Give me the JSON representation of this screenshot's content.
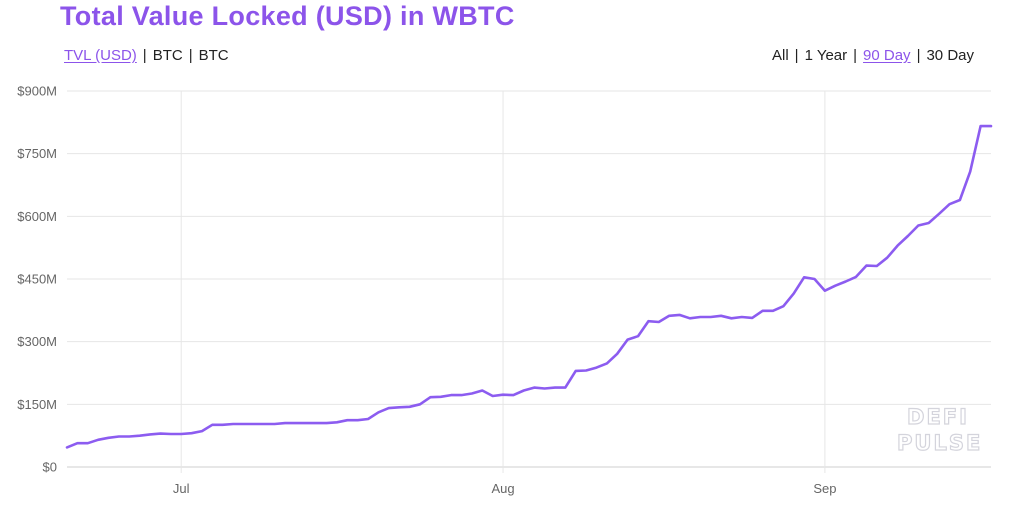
{
  "header": {
    "title": "Total Value Locked (USD) in WBTC"
  },
  "metric_toggle": [
    {
      "label": "TVL (USD)",
      "active": true
    },
    {
      "label": "BTC",
      "active": false
    },
    {
      "label": "BTC",
      "active": false
    }
  ],
  "range_toggle": [
    {
      "label": "All",
      "active": false
    },
    {
      "label": "1 Year",
      "active": false
    },
    {
      "label": "90 Day",
      "active": true
    },
    {
      "label": "30 Day",
      "active": false
    }
  ],
  "watermark": {
    "line1": "DEFI",
    "line2": "PULSE"
  },
  "colors": {
    "accent": "#8c54ea",
    "line": "#8c5cf0",
    "grid": "#e6e6e6",
    "axis_text": "#666666"
  },
  "chart_data": {
    "type": "line",
    "title": "Total Value Locked (USD) in WBTC",
    "xlabel": "",
    "ylabel": "",
    "x_start": "2020-06-20",
    "x_end": "2020-09-17",
    "x_ticks": [
      {
        "date": "2020-07-01",
        "label": "Jul"
      },
      {
        "date": "2020-08-01",
        "label": "Aug"
      },
      {
        "date": "2020-09-01",
        "label": "Sep"
      }
    ],
    "y_ticks": [
      {
        "value": 0,
        "label": "$0"
      },
      {
        "value": 150,
        "label": "$150M"
      },
      {
        "value": 300,
        "label": "$300M"
      },
      {
        "value": 450,
        "label": "$450M"
      },
      {
        "value": 600,
        "label": "$600M"
      },
      {
        "value": 750,
        "label": "$750M"
      },
      {
        "value": 900,
        "label": "$900M"
      }
    ],
    "ylim": [
      0,
      900
    ],
    "grid": true,
    "legend": false,
    "series": [
      {
        "color": "#8c5cf0",
        "x": [
          "2020-06-20",
          "2020-06-21",
          "2020-06-22",
          "2020-06-23",
          "2020-06-24",
          "2020-06-25",
          "2020-06-26",
          "2020-06-27",
          "2020-06-28",
          "2020-06-29",
          "2020-06-30",
          "2020-07-01",
          "2020-07-02",
          "2020-07-03",
          "2020-07-04",
          "2020-07-05",
          "2020-07-06",
          "2020-07-07",
          "2020-07-08",
          "2020-07-09",
          "2020-07-10",
          "2020-07-11",
          "2020-07-12",
          "2020-07-13",
          "2020-07-14",
          "2020-07-15",
          "2020-07-16",
          "2020-07-17",
          "2020-07-18",
          "2020-07-19",
          "2020-07-20",
          "2020-07-21",
          "2020-07-22",
          "2020-07-23",
          "2020-07-24",
          "2020-07-25",
          "2020-07-26",
          "2020-07-27",
          "2020-07-28",
          "2020-07-29",
          "2020-07-30",
          "2020-07-31",
          "2020-08-01",
          "2020-08-02",
          "2020-08-03",
          "2020-08-04",
          "2020-08-05",
          "2020-08-06",
          "2020-08-07",
          "2020-08-08",
          "2020-08-09",
          "2020-08-10",
          "2020-08-11",
          "2020-08-12",
          "2020-08-13",
          "2020-08-14",
          "2020-08-15",
          "2020-08-16",
          "2020-08-17",
          "2020-08-18",
          "2020-08-19",
          "2020-08-20",
          "2020-08-21",
          "2020-08-22",
          "2020-08-23",
          "2020-08-24",
          "2020-08-25",
          "2020-08-26",
          "2020-08-27",
          "2020-08-28",
          "2020-08-29",
          "2020-08-30",
          "2020-08-31",
          "2020-09-01",
          "2020-09-02",
          "2020-09-03",
          "2020-09-04",
          "2020-09-05",
          "2020-09-06",
          "2020-09-07",
          "2020-09-08",
          "2020-09-09",
          "2020-09-10",
          "2020-09-11",
          "2020-09-12",
          "2020-09-13",
          "2020-09-14",
          "2020-09-15",
          "2020-09-16",
          "2020-09-17"
        ],
        "values": [
          47,
          57,
          57,
          65,
          70,
          73,
          73,
          75,
          78,
          80,
          79,
          79,
          81,
          86,
          101,
          101,
          103,
          103,
          103,
          103,
          103,
          105,
          105,
          105,
          105,
          105,
          107,
          112,
          112,
          115,
          131,
          141,
          143,
          144,
          150,
          167,
          168,
          172,
          172,
          176,
          183,
          170,
          173,
          172,
          183,
          190,
          188,
          190,
          190,
          230,
          231,
          238,
          248,
          271,
          305,
          313,
          349,
          347,
          362,
          364,
          356,
          359,
          359,
          362,
          356,
          359,
          357,
          374,
          374,
          385,
          415,
          454,
          450,
          422,
          434,
          444,
          455,
          482,
          481,
          501,
          530,
          553,
          578,
          584,
          606,
          629,
          639,
          707,
          816,
          816
        ]
      }
    ]
  }
}
